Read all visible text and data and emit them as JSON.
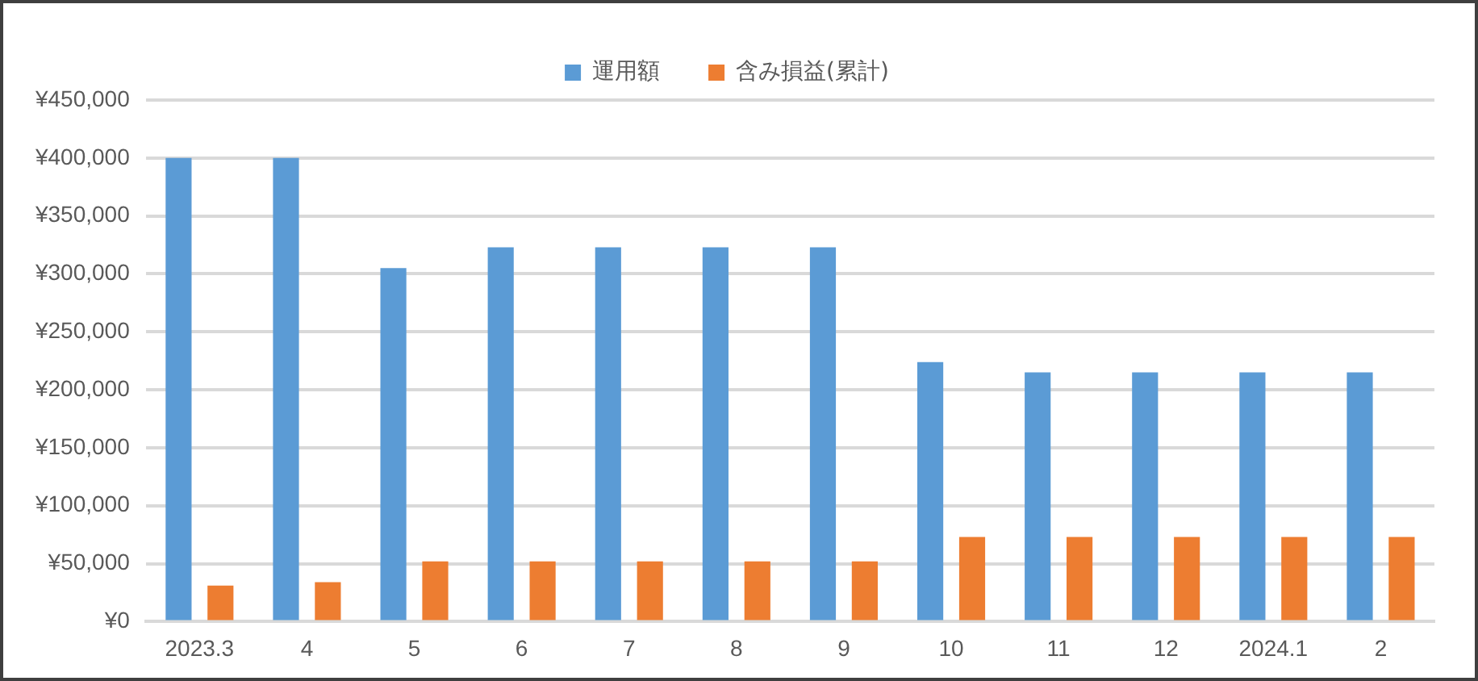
{
  "chart_data": {
    "type": "bar",
    "categories": [
      "2023.3",
      "4",
      "5",
      "6",
      "7",
      "8",
      "9",
      "10",
      "11",
      "12",
      "2024.1",
      "2"
    ],
    "series": [
      {
        "name": "運用額",
        "color": "#5b9bd5",
        "values": [
          400000,
          400000,
          305000,
          323000,
          323000,
          323000,
          323000,
          224000,
          215000,
          215000,
          215000,
          215000
        ]
      },
      {
        "name": "含み損益(累計)",
        "color": "#ed7d31",
        "values": [
          31000,
          34000,
          52000,
          52000,
          52000,
          52000,
          52000,
          73000,
          73000,
          73000,
          73000,
          73000
        ]
      }
    ],
    "ylim": [
      0,
      450000
    ],
    "yticks": [
      {
        "value": 0,
        "label": "¥0"
      },
      {
        "value": 50000,
        "label": "¥50,000"
      },
      {
        "value": 100000,
        "label": "¥100,000"
      },
      {
        "value": 150000,
        "label": "¥150,000"
      },
      {
        "value": 200000,
        "label": "¥200,000"
      },
      {
        "value": 250000,
        "label": "¥250,000"
      },
      {
        "value": 300000,
        "label": "¥300,000"
      },
      {
        "value": 350000,
        "label": "¥350,000"
      },
      {
        "value": 400000,
        "label": "¥400,000"
      },
      {
        "value": 450000,
        "label": "¥450,000"
      }
    ],
    "grid": "y",
    "legend": "top"
  }
}
